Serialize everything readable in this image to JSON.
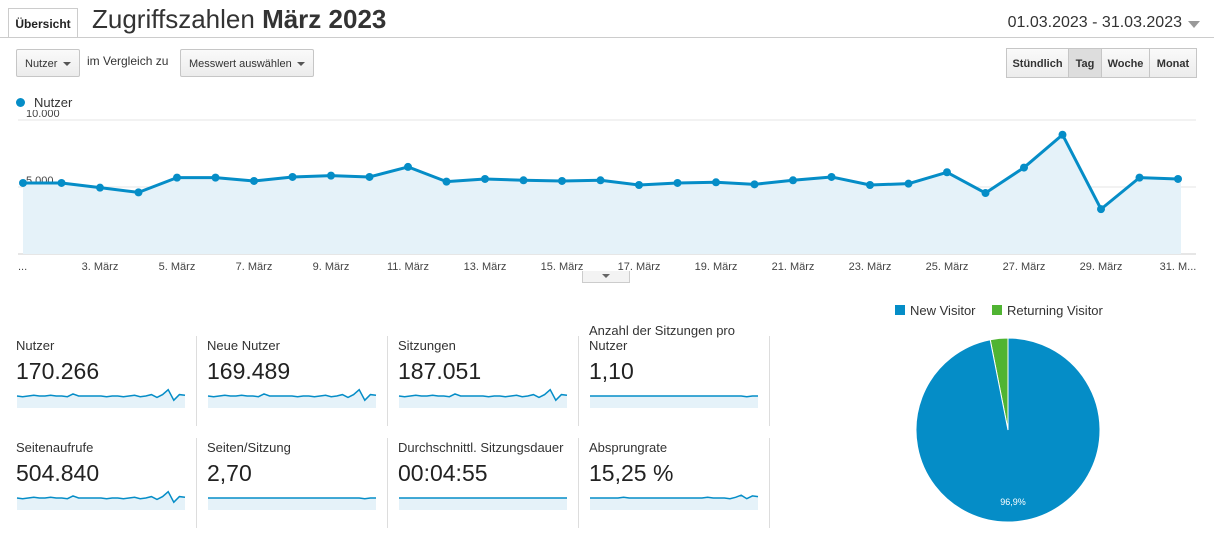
{
  "header": {
    "tab_label": "Übersicht",
    "title_prefix": "Zugriffszahlen ",
    "title_bold": "März 2023",
    "date_range": "01.03.2023 - 31.03.2023"
  },
  "controls": {
    "metric_select": "Nutzer",
    "compare_label": "im Vergleich zu",
    "compare_select": "Messwert auswählen",
    "granularity": [
      {
        "label": "Stündlich",
        "active": false
      },
      {
        "label": "Tag",
        "active": true
      },
      {
        "label": "Woche",
        "active": false
      },
      {
        "label": "Monat",
        "active": false
      }
    ]
  },
  "chart_data": {
    "type": "area",
    "series": [
      {
        "name": "Nutzer",
        "color": "#058dc7",
        "values": [
          5300,
          5300,
          4950,
          4600,
          5700,
          5700,
          5450,
          5750,
          5850,
          5750,
          6500,
          5400,
          5600,
          5500,
          5450,
          5500,
          5150,
          5300,
          5350,
          5200,
          5500,
          5750,
          5150,
          5250,
          6100,
          4550,
          6450,
          8900,
          3350,
          5700,
          5600
        ]
      }
    ],
    "ytick_values": [
      5000,
      10000
    ],
    "ytick_labels": [
      "5.000",
      "10.000"
    ],
    "ylim": [
      0,
      10000
    ],
    "xlabels": [
      "...",
      "3. März",
      "5. März",
      "7. März",
      "9. März",
      "11. März",
      "13. März",
      "15. März",
      "17. März",
      "19. März",
      "21. März",
      "23. März",
      "25. März",
      "27. März",
      "29. März",
      "31. M..."
    ],
    "xlabel_days": [
      1,
      3,
      5,
      7,
      9,
      11,
      13,
      15,
      17,
      19,
      21,
      23,
      25,
      27,
      29,
      31
    ],
    "grid": true,
    "legend": "top-left"
  },
  "metrics": [
    {
      "label": "Nutzer",
      "value": "170.266"
    },
    {
      "label": "Neue Nutzer",
      "value": "169.489"
    },
    {
      "label": "Sitzungen",
      "value": "187.051"
    },
    {
      "label": "Anzahl der Sitzungen pro Nutzer",
      "value": "1,10"
    },
    {
      "label": "Seitenaufrufe",
      "value": "504.840"
    },
    {
      "label": "Seiten/Sitzung",
      "value": "2,70"
    },
    {
      "label": "Durchschnittl. Sitzungsdauer",
      "value": "00:04:55"
    },
    {
      "label": "Absprungrate",
      "value": "15,25 %"
    }
  ],
  "pie": {
    "type": "pie",
    "legend": [
      {
        "name": "New Visitor",
        "color": "#058dc7"
      },
      {
        "name": "Returning Visitor",
        "color": "#50b432"
      }
    ],
    "values": [
      96.9,
      3.1
    ],
    "slice_label": "96,9%"
  }
}
